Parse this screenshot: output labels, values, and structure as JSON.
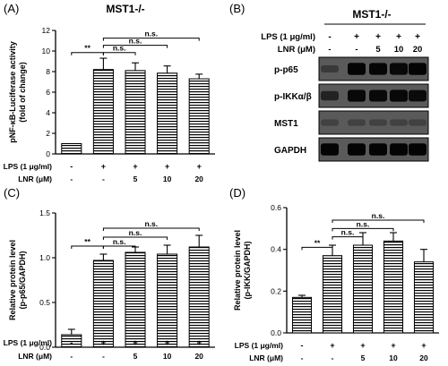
{
  "panels": {
    "a": {
      "label": "(A)",
      "title": "MST1-/-"
    },
    "b": {
      "label": "(B)",
      "title": "MST1-/-"
    },
    "c": {
      "label": "(C)"
    },
    "d": {
      "label": "(D)"
    }
  },
  "treatment_rows": {
    "lps_label": "LPS (1 μg/ml)",
    "lnr_label": "LNR (μM)",
    "lps_marks": [
      "-",
      "+",
      "+",
      "+",
      "+"
    ],
    "lnr_marks": [
      "-",
      "-",
      "5",
      "10",
      "20"
    ]
  },
  "blot": {
    "lps_label": "LPS (1 μg/ml)",
    "lnr_label": "LNR (μM)",
    "lps_marks": [
      "-",
      "+",
      "+",
      "+",
      "+"
    ],
    "lnr_marks": [
      "-",
      "-",
      "5",
      "10",
      "20"
    ],
    "bands": [
      {
        "name": "p-p65",
        "intensities": [
          0.25,
          0.95,
          0.92,
          0.9,
          0.95
        ]
      },
      {
        "name": "p-IKKα/β",
        "intensities": [
          0.55,
          0.9,
          0.88,
          0.9,
          0.85
        ]
      },
      {
        "name": "MST1",
        "intensities": [
          0.15,
          0.15,
          0.15,
          0.15,
          0.15
        ]
      },
      {
        "name": "GAPDH",
        "intensities": [
          0.95,
          0.95,
          0.95,
          0.95,
          0.95
        ]
      }
    ]
  },
  "chart_data": [
    {
      "panel": "A",
      "type": "bar",
      "ylabel": "pNF-κB-Luciferase activity (fold of change)",
      "ylabel_lines": [
        "pNF-κB-Luciferase activity",
        "(fold of change)"
      ],
      "ylim": [
        0,
        12
      ],
      "yticks": [
        0,
        2,
        4,
        6,
        8,
        10,
        12
      ],
      "values": [
        1.0,
        8.2,
        8.1,
        7.85,
        7.3
      ],
      "errors": [
        0.0,
        1.1,
        0.75,
        0.7,
        0.45
      ],
      "significance": [
        {
          "from": 0,
          "to": 1,
          "label": "**",
          "y": 9.85
        },
        {
          "from": 1,
          "to": 2,
          "label": "n.s.",
          "y": 9.85
        },
        {
          "from": 1,
          "to": 3,
          "label": "n.s.",
          "y": 10.55
        },
        {
          "from": 1,
          "to": 4,
          "label": "n.s.",
          "y": 11.25
        }
      ]
    },
    {
      "panel": "C",
      "type": "bar",
      "ylabel": "Relative protein level (p-p65/GAPDH)",
      "ylabel_lines": [
        "Relative protein level",
        "(p-p65/GAPDH)"
      ],
      "ylim": [
        0,
        1.5
      ],
      "yticks": [
        0.0,
        0.5,
        1.0,
        1.5
      ],
      "values": [
        0.14,
        0.97,
        1.06,
        1.04,
        1.12
      ],
      "errors": [
        0.06,
        0.07,
        0.06,
        0.1,
        0.13
      ],
      "significance": [
        {
          "from": 0,
          "to": 1,
          "label": "**",
          "y": 1.13
        },
        {
          "from": 1,
          "to": 2,
          "label": "n.s.",
          "y": 1.13
        },
        {
          "from": 1,
          "to": 3,
          "label": "n.s.",
          "y": 1.23
        },
        {
          "from": 1,
          "to": 4,
          "label": "n.s.",
          "y": 1.33
        }
      ]
    },
    {
      "panel": "D",
      "type": "bar",
      "ylabel": "Relative protein level (p-IKK/GAPDH)",
      "ylabel_lines": [
        "Relative protein level",
        "(p-IKK/GAPDH)"
      ],
      "ylim": [
        0,
        0.6
      ],
      "yticks": [
        0.0,
        0.2,
        0.4,
        0.6
      ],
      "values": [
        0.17,
        0.37,
        0.42,
        0.44,
        0.34
      ],
      "errors": [
        0.01,
        0.05,
        0.06,
        0.04,
        0.06
      ],
      "significance": [
        {
          "from": 0,
          "to": 1,
          "label": "**",
          "y": 0.41
        },
        {
          "from": 1,
          "to": 2,
          "label": "n.s.",
          "y": 0.46
        },
        {
          "from": 1,
          "to": 3,
          "label": "n.s.",
          "y": 0.5
        },
        {
          "from": 1,
          "to": 4,
          "label": "n.s.",
          "y": 0.54
        }
      ]
    }
  ]
}
